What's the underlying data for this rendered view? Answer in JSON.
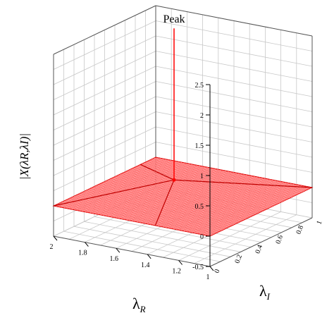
{
  "chart_data": {
    "type": "surface",
    "title": "",
    "annotation": "Peak",
    "zlabel": "|X(λR,λI)|",
    "xlabel": "λR",
    "ylabel": "λI",
    "x_ticks": [
      "1",
      "1.2",
      "1.4",
      "1.6",
      "1.8",
      "2"
    ],
    "y_ticks": [
      "0",
      "0.2",
      "0.4",
      "0.6",
      "0.8",
      "1"
    ],
    "z_ticks": [
      "-0.5",
      "0",
      "0.5",
      "1",
      "1.5",
      "2",
      "2.5"
    ],
    "xlim": [
      1,
      2
    ],
    "ylim": [
      0,
      1
    ],
    "zlim": [
      -0.5,
      2.5
    ],
    "surface_value": 0,
    "surface_color": "#ff4444",
    "peak": {
      "x": 1.7,
      "y": 0.72,
      "z": 2.5
    },
    "grid": true
  }
}
